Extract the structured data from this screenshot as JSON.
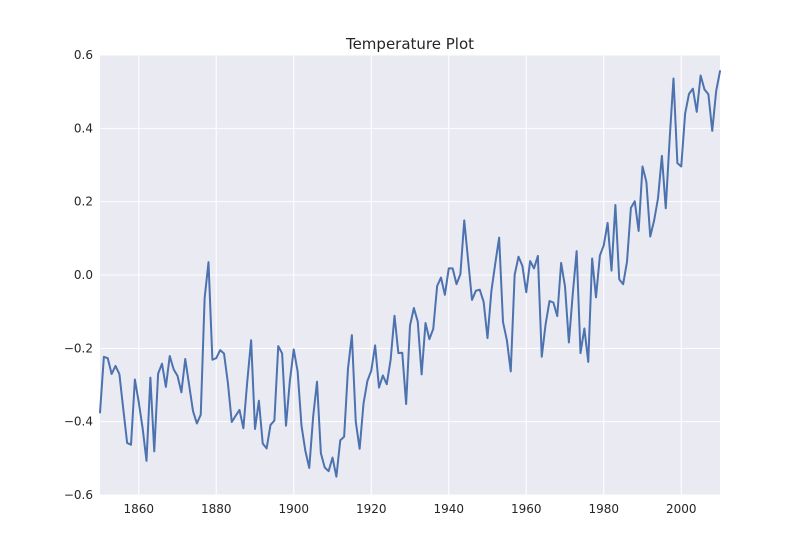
{
  "chart_data": {
    "type": "line",
    "title": "Temperature Plot",
    "xlabel": "",
    "ylabel": "",
    "xlim": [
      1850,
      2010
    ],
    "ylim": [
      -0.6,
      0.6
    ],
    "grid": true,
    "x_ticks": [
      1860,
      1880,
      1900,
      1920,
      1940,
      1960,
      1980,
      2000
    ],
    "y_ticks": [
      -0.6,
      -0.4,
      -0.2,
      0.0,
      0.2,
      0.4,
      0.6
    ],
    "x_tick_labels": [
      "1860",
      "1880",
      "1900",
      "1920",
      "1940",
      "1960",
      "1980",
      "2000"
    ],
    "y_tick_labels": [
      "−0.6",
      "−0.4",
      "−0.2",
      "0.0",
      "0.2",
      "0.4",
      "0.6"
    ],
    "colors": {
      "background": "#eaeaf2",
      "grid": "#ffffff",
      "line": "#4c72b0",
      "text": "#262626"
    },
    "series": [
      {
        "x": [
          1850,
          1851,
          1852,
          1853,
          1854,
          1855,
          1856,
          1857,
          1858,
          1859,
          1860,
          1861,
          1862,
          1863,
          1864,
          1865,
          1866,
          1867,
          1868,
          1869,
          1870,
          1871,
          1872,
          1873,
          1874,
          1875,
          1876,
          1877,
          1878,
          1879,
          1880,
          1881,
          1882,
          1883,
          1884,
          1885,
          1886,
          1887,
          1888,
          1889,
          1890,
          1891,
          1892,
          1893,
          1894,
          1895,
          1896,
          1897,
          1898,
          1899,
          1900,
          1901,
          1902,
          1903,
          1904,
          1905,
          1906,
          1907,
          1908,
          1909,
          1910,
          1911,
          1912,
          1913,
          1914,
          1915,
          1916,
          1917,
          1918,
          1919,
          1920,
          1921,
          1922,
          1923,
          1924,
          1925,
          1926,
          1927,
          1928,
          1929,
          1930,
          1931,
          1932,
          1933,
          1934,
          1935,
          1936,
          1937,
          1938,
          1939,
          1940,
          1941,
          1942,
          1943,
          1944,
          1945,
          1946,
          1947,
          1948,
          1949,
          1950,
          1951,
          1952,
          1953,
          1954,
          1955,
          1956,
          1957,
          1958,
          1959,
          1960,
          1961,
          1962,
          1963,
          1964,
          1965,
          1966,
          1967,
          1968,
          1969,
          1970,
          1971,
          1972,
          1973,
          1974,
          1975,
          1976,
          1977,
          1978,
          1979,
          1980,
          1981,
          1982,
          1983,
          1984,
          1985,
          1986,
          1987,
          1988,
          1989,
          1990,
          1991,
          1992,
          1993,
          1994,
          1995,
          1996,
          1997,
          1998,
          1999,
          2000,
          2001,
          2002,
          2003,
          2004,
          2005,
          2006,
          2007,
          2008,
          2009,
          2010
        ],
        "y": [
          -0.375,
          -0.223,
          -0.227,
          -0.27,
          -0.248,
          -0.27,
          -0.365,
          -0.458,
          -0.463,
          -0.285,
          -0.347,
          -0.418,
          -0.507,
          -0.28,
          -0.481,
          -0.269,
          -0.242,
          -0.305,
          -0.221,
          -0.257,
          -0.275,
          -0.32,
          -0.229,
          -0.3,
          -0.371,
          -0.405,
          -0.381,
          -0.063,
          0.035,
          -0.231,
          -0.227,
          -0.205,
          -0.214,
          -0.294,
          -0.401,
          -0.384,
          -0.368,
          -0.418,
          -0.291,
          -0.178,
          -0.42,
          -0.343,
          -0.46,
          -0.473,
          -0.409,
          -0.397,
          -0.194,
          -0.214,
          -0.411,
          -0.288,
          -0.203,
          -0.263,
          -0.411,
          -0.48,
          -0.526,
          -0.387,
          -0.291,
          -0.486,
          -0.525,
          -0.535,
          -0.498,
          -0.55,
          -0.451,
          -0.441,
          -0.255,
          -0.164,
          -0.4,
          -0.474,
          -0.351,
          -0.289,
          -0.261,
          -0.192,
          -0.307,
          -0.274,
          -0.298,
          -0.231,
          -0.111,
          -0.213,
          -0.212,
          -0.352,
          -0.138,
          -0.09,
          -0.127,
          -0.271,
          -0.131,
          -0.175,
          -0.147,
          -0.03,
          -0.007,
          -0.054,
          0.018,
          0.018,
          -0.025,
          0.002,
          0.149,
          0.04,
          -0.068,
          -0.043,
          -0.04,
          -0.073,
          -0.172,
          -0.044,
          0.031,
          0.102,
          -0.128,
          -0.178,
          -0.263,
          0.0,
          0.05,
          0.025,
          -0.047,
          0.038,
          0.018,
          0.052,
          -0.223,
          -0.134,
          -0.071,
          -0.075,
          -0.112,
          0.033,
          -0.031,
          -0.184,
          -0.052,
          0.065,
          -0.213,
          -0.146,
          -0.237,
          0.045,
          -0.061,
          0.053,
          0.081,
          0.142,
          0.012,
          0.191,
          -0.012,
          -0.025,
          0.036,
          0.183,
          0.201,
          0.12,
          0.296,
          0.254,
          0.105,
          0.149,
          0.209,
          0.325,
          0.182,
          0.37,
          0.536,
          0.305,
          0.296,
          0.44,
          0.494,
          0.508,
          0.445,
          0.544,
          0.506,
          0.493,
          0.393,
          0.501,
          0.556
        ]
      }
    ]
  }
}
